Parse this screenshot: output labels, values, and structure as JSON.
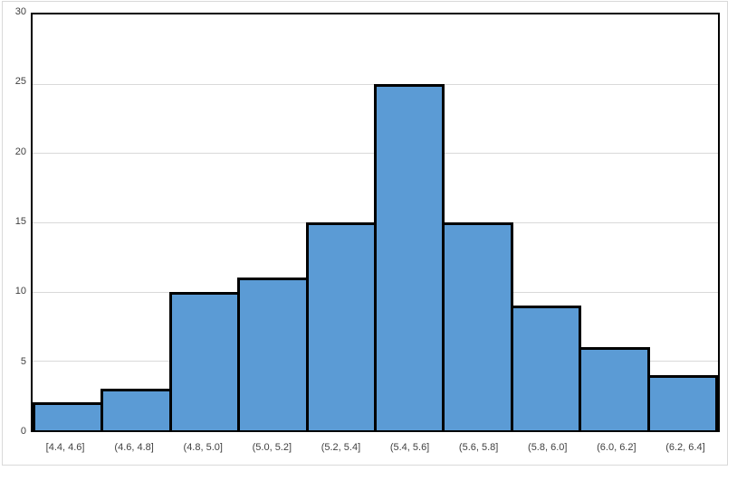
{
  "chart_data": {
    "type": "bar",
    "subtype": "histogram",
    "title": "",
    "xlabel": "",
    "ylabel": "",
    "categories": [
      "[4.4, 4.6]",
      "(4.6, 4.8]",
      "(4.8, 5.0]",
      "(5.0, 5.2]",
      "(5.2, 5.4]",
      "(5.4, 5.6]",
      "(5.6, 5.8]",
      "(5.8, 6.0]",
      "(6.0, 6.2]",
      "(6.2, 6.4]"
    ],
    "values": [
      2,
      3,
      10,
      11,
      15,
      25,
      15,
      9,
      6,
      4
    ],
    "ylim": [
      0,
      30
    ],
    "yticks": [
      0,
      5,
      10,
      15,
      20,
      25,
      30
    ],
    "grid": "horizontal",
    "legend": "none",
    "gap": 0,
    "colors": {
      "bar_fill": "#5B9BD5",
      "bar_edge": "#000000",
      "gridline": "#D9D9D9",
      "axis_border": "#000000",
      "tick_label": "#404040",
      "chart_frame": "#D9D9D9",
      "background": "#FFFFFF"
    }
  }
}
